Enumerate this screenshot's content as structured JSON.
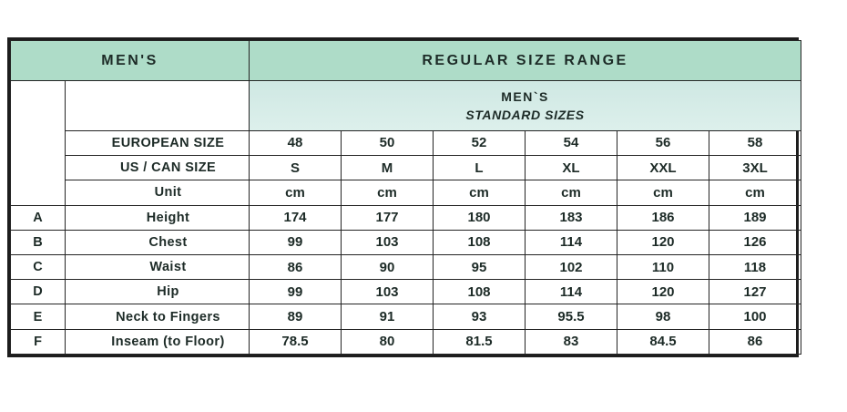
{
  "header": {
    "left": "MEN'S",
    "right": "REGULAR SIZE RANGE"
  },
  "subheader": {
    "line1": "MEN`S",
    "line2": "STANDARD SIZES"
  },
  "size_rows": [
    {
      "label": "EUROPEAN SIZE",
      "values": [
        "48",
        "50",
        "52",
        "54",
        "56",
        "58"
      ]
    },
    {
      "label": "US / CAN SIZE",
      "values": [
        "S",
        "M",
        "L",
        "XL",
        "XXL",
        "3XL"
      ]
    },
    {
      "label": "Unit",
      "values": [
        "cm",
        "cm",
        "cm",
        "cm",
        "cm",
        "cm"
      ]
    }
  ],
  "measurement_rows": [
    {
      "letter": "A",
      "label": "Height",
      "values": [
        "174",
        "177",
        "180",
        "183",
        "186",
        "189"
      ]
    },
    {
      "letter": "B",
      "label": "Chest",
      "values": [
        "99",
        "103",
        "108",
        "114",
        "120",
        "126"
      ]
    },
    {
      "letter": "C",
      "label": "Waist",
      "values": [
        "86",
        "90",
        "95",
        "102",
        "110",
        "118"
      ]
    },
    {
      "letter": "D",
      "label": "Hip",
      "values": [
        "99",
        "103",
        "108",
        "114",
        "120",
        "127"
      ]
    },
    {
      "letter": "E",
      "label": "Neck to Fingers",
      "values": [
        "89",
        "91",
        "93",
        "95.5",
        "98",
        "100"
      ]
    },
    {
      "letter": "F",
      "label": "Inseam (to Floor)",
      "values": [
        "78.5",
        "80",
        "81.5",
        "83",
        "84.5",
        "86"
      ]
    }
  ],
  "colors": {
    "header_green": "#aedcc8",
    "subheader_teal": "#d6ebe7",
    "border_dark": "#1d1d1d",
    "text": "#1d2b27"
  },
  "chart_data": {
    "type": "table",
    "title": "MEN'S — REGULAR SIZE RANGE — MEN`S STANDARD SIZES",
    "unit": "cm",
    "columns": [
      "EUROPEAN SIZE 48",
      "EUROPEAN SIZE 50",
      "EUROPEAN SIZE 52",
      "EUROPEAN SIZE 54",
      "EUROPEAN SIZE 56",
      "EUROPEAN SIZE 58"
    ],
    "us_can_sizes": [
      "S",
      "M",
      "L",
      "XL",
      "XXL",
      "3XL"
    ],
    "rows": [
      {
        "id": "A",
        "measure": "Height",
        "values": [
          174,
          177,
          180,
          183,
          186,
          189
        ]
      },
      {
        "id": "B",
        "measure": "Chest",
        "values": [
          99,
          103,
          108,
          114,
          120,
          126
        ]
      },
      {
        "id": "C",
        "measure": "Waist",
        "values": [
          86,
          90,
          95,
          102,
          110,
          118
        ]
      },
      {
        "id": "D",
        "measure": "Hip",
        "values": [
          99,
          103,
          108,
          114,
          120,
          127
        ]
      },
      {
        "id": "E",
        "measure": "Neck to Fingers",
        "values": [
          89,
          91,
          93,
          95.5,
          98,
          100
        ]
      },
      {
        "id": "F",
        "measure": "Inseam (to Floor)",
        "values": [
          78.5,
          80,
          81.5,
          83,
          84.5,
          86
        ]
      }
    ]
  }
}
